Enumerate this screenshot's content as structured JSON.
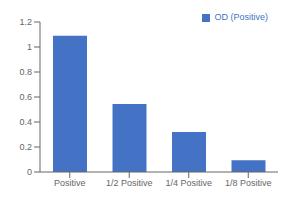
{
  "chart_data": {
    "type": "bar",
    "categories": [
      "Positive",
      "1/2 Positive",
      "1/4 Positive",
      "1/8 Positive"
    ],
    "series": [
      {
        "name": "OD (Positive)",
        "color": "#4472C4",
        "values": [
          1.09,
          0.545,
          0.32,
          0.095
        ]
      }
    ],
    "ylim": [
      0,
      1.2
    ],
    "yticks": [
      0,
      0.2,
      0.4,
      0.6,
      0.8,
      1,
      1.2
    ],
    "grid": false,
    "legend": "upper right"
  }
}
